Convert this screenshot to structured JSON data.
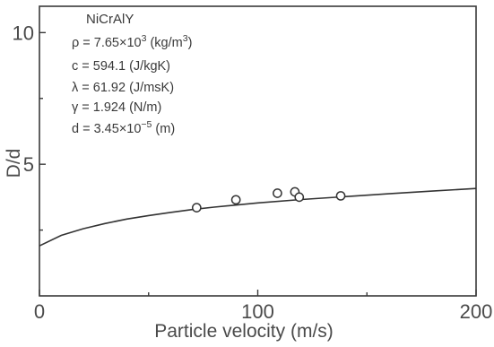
{
  "chart_data": {
    "type": "scatter",
    "title": "",
    "xlabel": "Particle velocity (m/s)",
    "ylabel": "D/d",
    "xlim": [
      0,
      200
    ],
    "ylim": [
      0,
      11
    ],
    "xticks": [
      0,
      100,
      200
    ],
    "yticks": [
      5,
      10
    ],
    "xtick_labels": [
      "0",
      "100",
      "200"
    ],
    "ytick_labels": [
      "5",
      "10"
    ],
    "grid": false,
    "series": [
      {
        "type": "scatter",
        "marker": "open-circle",
        "x": [
          72,
          90,
          109,
          117,
          119,
          138
        ],
        "y": [
          3.35,
          3.65,
          3.9,
          3.95,
          3.75,
          3.8
        ]
      },
      {
        "type": "line",
        "x": [
          0,
          10,
          20,
          30,
          40,
          50,
          60,
          70,
          80,
          90,
          100,
          120,
          140,
          160,
          180,
          200
        ],
        "y": [
          1.9,
          2.3,
          2.55,
          2.75,
          2.92,
          3.05,
          3.17,
          3.28,
          3.37,
          3.45,
          3.53,
          3.66,
          3.77,
          3.88,
          3.98,
          4.08
        ]
      }
    ],
    "annotations": {
      "material": "NiCrAlY",
      "lines": [
        {
          "pre": "ρ = 7.65",
          "times": "×",
          "base": "10",
          "sup": "3",
          "post": " (kg/m",
          "post_sup": "3",
          "post_end": ")"
        },
        {
          "pre": "c = 594.1 (J/kgK)"
        },
        {
          "pre": "λ = 61.92 (J/msK)"
        },
        {
          "pre": "γ = 1.924 (N/m)"
        },
        {
          "pre": "d = 3.45",
          "times": "×",
          "base": "10",
          "sup": "−5",
          "post": " (m)"
        }
      ]
    }
  }
}
